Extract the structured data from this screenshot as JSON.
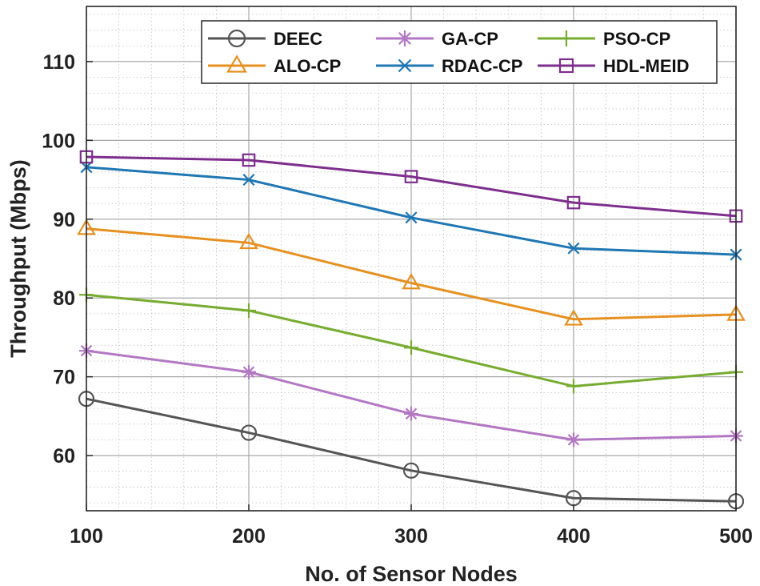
{
  "chart_data": {
    "type": "line",
    "title": "",
    "xlabel": "No. of Sensor Nodes",
    "ylabel": "Throughput (Mbps)",
    "x": [
      100,
      200,
      300,
      400,
      500
    ],
    "xlim": [
      100,
      500
    ],
    "ylim": [
      53,
      117
    ],
    "xticks": [
      100,
      200,
      300,
      400,
      500
    ],
    "yticks": [
      60,
      70,
      80,
      90,
      100,
      110
    ],
    "xtick_labels": [
      "100",
      "200",
      "300",
      "400",
      "500"
    ],
    "ytick_labels": [
      "60",
      "70",
      "80",
      "90",
      "100",
      "110"
    ],
    "grid": true,
    "minor_grid": true,
    "legend_position": "top-right",
    "series": [
      {
        "name": "DEEC",
        "values": [
          67.2,
          62.9,
          58.1,
          54.6,
          54.2
        ],
        "color": "#555555",
        "marker": "circle"
      },
      {
        "name": "GA-CP",
        "values": [
          73.3,
          70.6,
          65.3,
          62.0,
          62.5
        ],
        "color": "#b377c4",
        "marker": "asterisk"
      },
      {
        "name": "PSO-CP",
        "values": [
          80.4,
          78.4,
          73.7,
          68.8,
          70.6
        ],
        "color": "#77ac30",
        "marker": "plus"
      },
      {
        "name": "ALO-CP",
        "values": [
          88.8,
          87.0,
          81.9,
          77.3,
          77.9
        ],
        "color": "#e69020",
        "marker": "triangle"
      },
      {
        "name": "RDAC-CP",
        "values": [
          96.6,
          95.0,
          90.2,
          86.3,
          85.5
        ],
        "color": "#1f77b4",
        "marker": "x"
      },
      {
        "name": "HDL-MEID",
        "values": [
          97.9,
          97.5,
          95.4,
          92.1,
          90.4
        ],
        "color": "#7e2f8e",
        "marker": "square"
      }
    ]
  }
}
